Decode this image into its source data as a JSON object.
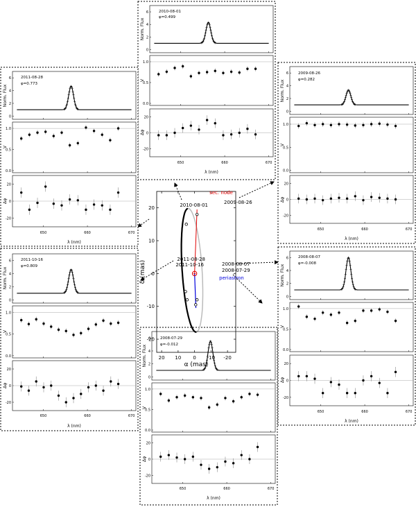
{
  "chart_data": [
    {
      "type": "scatter",
      "id": "orbit",
      "xlabel": "α (mas)",
      "ylabel": "δ (mas)",
      "xticks": [
        20,
        10,
        0,
        -10,
        -20
      ],
      "yticks": [
        20,
        10,
        0,
        -10,
        -20
      ],
      "xlim": [
        23,
        -25
      ],
      "ylim": [
        -24,
        25
      ],
      "annotations": {
        "node": "sec. node",
        "periastron": "periastron",
        "epochs": [
          "2010-08-01",
          "2009-08-26",
          "2011-08-28",
          "2011-10-16",
          "2008-08-07",
          "2008-07-29"
        ]
      },
      "epoch_points": [
        {
          "label": "2010-08-01",
          "x": 5.0,
          "y": 15.0
        },
        {
          "label": "2009-08-26",
          "x": -1.5,
          "y": 18.0
        },
        {
          "label": "2011-08-28",
          "x": 5.5,
          "y": -5.5
        },
        {
          "label": "2011-10-16",
          "x": 4.5,
          "y": -8.0
        },
        {
          "label": "2008-08-07",
          "x": -1.5,
          "y": -8.0
        },
        {
          "label": "2008-07-29",
          "x": -0.7,
          "y": -9.5
        }
      ]
    },
    {
      "type": "line",
      "id": "p2010",
      "date": "2010-08-01",
      "phase": "φ=0.499",
      "ylabels": [
        "Norm. Flux",
        "V",
        "Δφ"
      ],
      "xlabel": "λ (nm)",
      "flux_yticks": [
        0,
        2,
        4,
        6
      ],
      "v_yticks": [
        0.0,
        0.5,
        1.0
      ],
      "phi_yticks": [
        20,
        0,
        -20
      ],
      "xticks": [
        650,
        660,
        670
      ],
      "peak": 4.3,
      "V": [
        0.7,
        0.76,
        0.85,
        0.89,
        0.65,
        0.73,
        0.75,
        0.78,
        0.73,
        0.76,
        0.74,
        0.83,
        0.83
      ],
      "phi": [
        -3,
        -3,
        0,
        6,
        9,
        4,
        16,
        12,
        -3,
        -2,
        0,
        5,
        -2
      ]
    },
    {
      "type": "line",
      "id": "p2009",
      "date": "2009-08-26",
      "phase": "φ=0.282",
      "ylabels": [
        "Norm. Flux",
        "V",
        "Δφ"
      ],
      "xlabel": "λ (nm)",
      "flux_yticks": [
        0,
        2,
        4,
        6
      ],
      "v_yticks": [
        0.0,
        0.5,
        1.0
      ],
      "phi_yticks": [
        20,
        0,
        -20
      ],
      "xticks": [
        650,
        660,
        670
      ],
      "peak": 3.3,
      "V": [
        0.96,
        1.02,
        0.98,
        1.0,
        0.98,
        1.0,
        0.99,
        0.97,
        0.98,
        1.0,
        1.01,
        0.99,
        0.96
      ],
      "phi": [
        1,
        0,
        1,
        -1,
        1,
        2,
        1,
        4,
        -1,
        3,
        2,
        1,
        0
      ]
    },
    {
      "type": "line",
      "id": "p2011a",
      "date": "2011-08-28",
      "phase": "φ=0.773",
      "ylabels": [
        "Norm. Flux",
        "V",
        "Δφ"
      ],
      "xlabel": "λ (nm)",
      "flux_yticks": [
        0,
        2,
        4,
        6
      ],
      "v_yticks": [
        0.0,
        0.5,
        1.0
      ],
      "phi_yticks": [
        20,
        0,
        -20
      ],
      "xticks": [
        650,
        660,
        670
      ],
      "peak": 4.7,
      "V": [
        0.76,
        0.85,
        0.9,
        0.92,
        0.82,
        0.9,
        0.6,
        0.65,
        1.02,
        0.94,
        0.85,
        0.72,
        1.0
      ],
      "phi": [
        10,
        -10,
        -2,
        17,
        -3,
        -5,
        2,
        1,
        -10,
        -4,
        -5,
        -10,
        10
      ]
    },
    {
      "type": "line",
      "id": "p2011b",
      "date": "2011-10-16",
      "phase": "φ=0.809",
      "ylabels": [
        "Norm. Flux",
        "V",
        "Δφ"
      ],
      "xlabel": "λ (nm)",
      "flux_yticks": [
        0,
        2,
        4,
        6
      ],
      "v_yticks": [
        0.0,
        0.5,
        1.0
      ],
      "phi_yticks": [
        20,
        0,
        -20
      ],
      "xticks": [
        650,
        660,
        670
      ],
      "peak": 4.6,
      "V": [
        0.82,
        0.73,
        0.84,
        0.74,
        0.67,
        0.6,
        0.57,
        0.48,
        0.52,
        0.62,
        0.72,
        0.81,
        0.74,
        0.76
      ],
      "phi": [
        -1,
        -6,
        5,
        -2,
        0,
        -12,
        -20,
        -15,
        -10,
        -2,
        0,
        -6,
        5,
        2
      ]
    },
    {
      "type": "line",
      "id": "p2008a",
      "date": "2008-08-07",
      "phase": "φ=-0.008",
      "ylabels": [
        "Norm. Flux",
        "V",
        "Δφ"
      ],
      "xlabel": "λ (nm)",
      "flux_yticks": [
        0,
        2,
        4,
        6
      ],
      "v_yticks": [
        0.0,
        0.5,
        1.0
      ],
      "phi_yticks": [
        20,
        0,
        -20
      ],
      "xticks": [
        650,
        660,
        670
      ],
      "peak": 6.0,
      "V": [
        1.05,
        0.8,
        0.75,
        0.9,
        0.85,
        0.9,
        0.65,
        0.7,
        0.95,
        0.95,
        0.98,
        0.92,
        0.7
      ],
      "phi": [
        5,
        5,
        2,
        -15,
        -2,
        -5,
        -15,
        -15,
        0,
        5,
        -3,
        -15,
        10
      ]
    },
    {
      "type": "line",
      "id": "p2008b",
      "date": "2008-07-29",
      "phase": "φ=-0.012",
      "ylabels": [
        "Norm. Flux",
        "V",
        "Δφ"
      ],
      "xlabel": "λ (nm)",
      "flux_yticks": [
        0,
        2,
        4,
        6
      ],
      "v_yticks": [
        0.0,
        0.5,
        1.0
      ],
      "phi_yticks": [
        20,
        0,
        -20
      ],
      "xticks": [
        650,
        660,
        670
      ],
      "peak": 5.5,
      "V": [
        0.88,
        0.72,
        0.8,
        0.84,
        0.8,
        0.78,
        0.55,
        0.62,
        0.78,
        0.7,
        0.8,
        0.88,
        0.86
      ],
      "phi": [
        3,
        5,
        2,
        0,
        3,
        -7,
        -12,
        -10,
        -3,
        -5,
        5,
        0,
        15
      ]
    }
  ]
}
